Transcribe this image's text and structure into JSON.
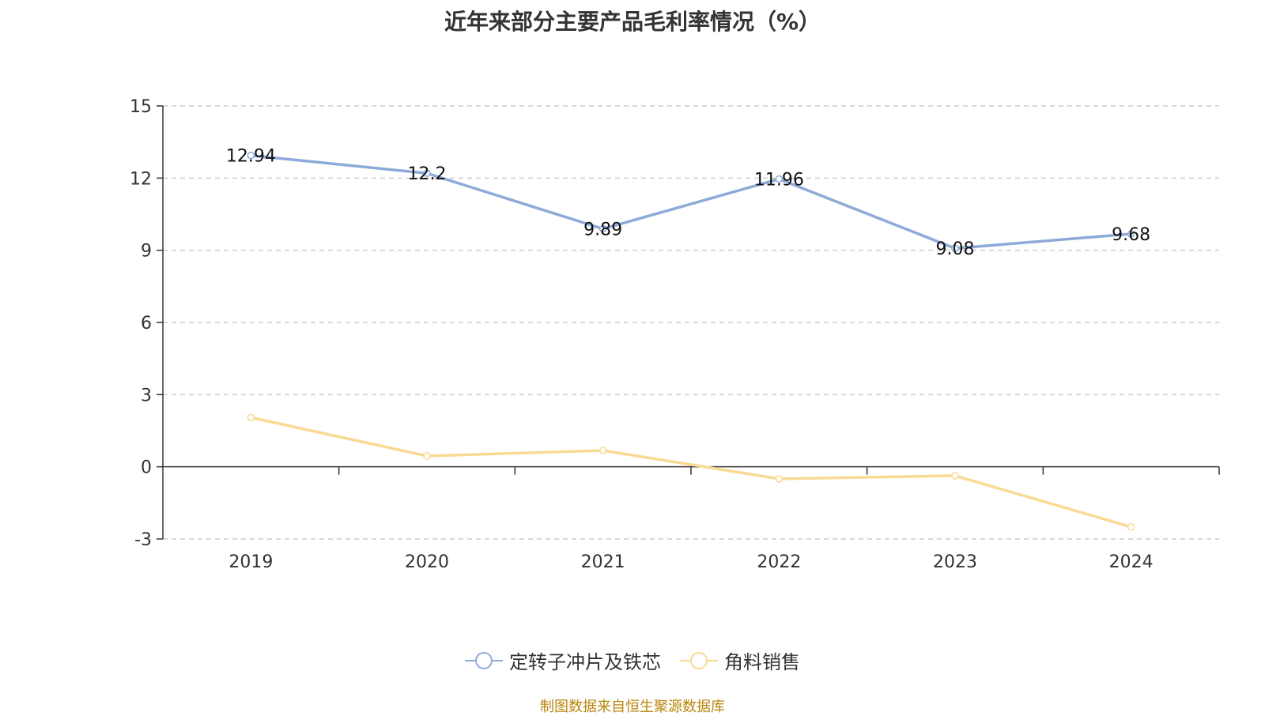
{
  "title": "近年来部分主要产品毛利率情况（%）",
  "source": "制图数据来自恒生聚源数据库",
  "chart_data": {
    "type": "line",
    "title": "近年来部分主要产品毛利率情况（%）",
    "categories": [
      "2019",
      "2020",
      "2021",
      "2022",
      "2023",
      "2024"
    ],
    "ylim": [
      -3,
      15
    ],
    "yticks": [
      15,
      12,
      9,
      6,
      3,
      0,
      -3
    ],
    "grid": true,
    "legend_position": "bottom",
    "series": [
      {
        "name": "定转子冲片及铁芯",
        "color": "#8eaad9",
        "values": [
          12.94,
          12.2,
          9.89,
          11.96,
          9.08,
          9.68
        ],
        "labels": [
          "12.94",
          "12.2",
          "9.89",
          "11.96",
          "9.08",
          "9.68"
        ],
        "show_labels": true
      },
      {
        "name": "角料销售",
        "color": "#fad993",
        "values": [
          2.05,
          0.45,
          0.68,
          -0.5,
          -0.37,
          -2.5
        ],
        "show_labels": false
      }
    ]
  }
}
